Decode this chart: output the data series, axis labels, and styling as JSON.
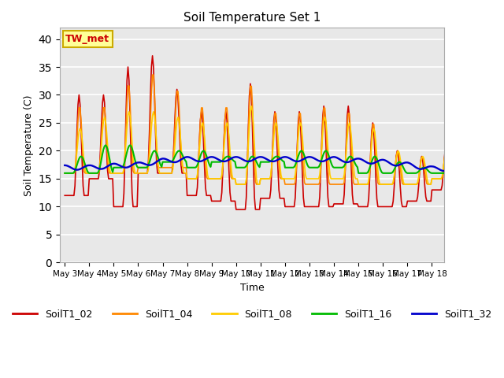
{
  "title": "Soil Temperature Set 1",
  "xlabel": "Time",
  "ylabel": "Soil Temperature (C)",
  "ylim": [
    0,
    42
  ],
  "yticks": [
    0,
    5,
    10,
    15,
    20,
    25,
    30,
    35,
    40
  ],
  "bg_color": "#e8e8e8",
  "fig_color": "#ffffff",
  "annotation_text": "TW_met",
  "annotation_color": "#cc0000",
  "annotation_bg": "#ffff99",
  "annotation_border": "#ccaa00",
  "series_colors": {
    "SoilT1_02": "#cc0000",
    "SoilT1_04": "#ff8800",
    "SoilT1_08": "#ffcc00",
    "SoilT1_16": "#00bb00",
    "SoilT1_32": "#0000cc"
  },
  "line_width": 1.2,
  "xtick_labels": [
    "May 3",
    "May 4",
    "May 5",
    "May 6",
    "May 7",
    "May 8",
    "May 9",
    "May 10",
    "May 11",
    "May 12",
    "May 13",
    "May 14",
    "May 15",
    "May 16",
    "May 17",
    "May 18"
  ],
  "figsize": [
    6.4,
    4.8
  ],
  "dpi": 100
}
